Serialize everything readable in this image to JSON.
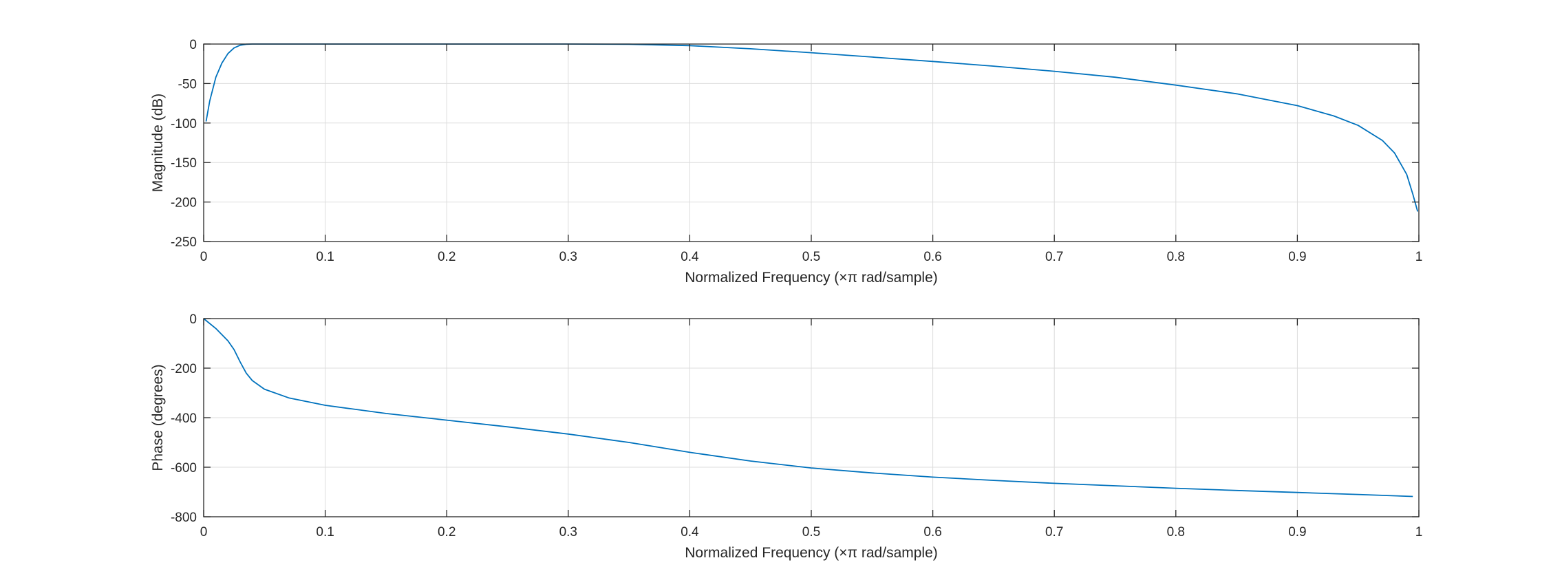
{
  "colors": {
    "series": "#0072bd",
    "axes": "#262626",
    "grid": "#dcdcdc"
  },
  "chart_data": [
    {
      "type": "line",
      "xlabel": "Normalized Frequency  (×π rad/sample)",
      "ylabel": "Magnitude (dB)",
      "xlim": [
        0,
        1
      ],
      "ylim": [
        -250,
        0
      ],
      "xticks": [
        0,
        0.1,
        0.2,
        0.3,
        0.4,
        0.5,
        0.6,
        0.7,
        0.8,
        0.9,
        1
      ],
      "xtick_labels": [
        "0",
        "0.1",
        "0.2",
        "0.3",
        "0.4",
        "0.5",
        "0.6",
        "0.7",
        "0.8",
        "0.9",
        "1"
      ],
      "yticks": [
        -250,
        -200,
        -150,
        -100,
        -50,
        0
      ],
      "ytick_labels": [
        "-250",
        "-200",
        "-150",
        "-100",
        "-50",
        "0"
      ],
      "grid": true,
      "series": [
        {
          "x": [
            0.002,
            0.005,
            0.01,
            0.015,
            0.02,
            0.025,
            0.03,
            0.035,
            0.04,
            0.05,
            0.1,
            0.2,
            0.3,
            0.35,
            0.4,
            0.45,
            0.5,
            0.55,
            0.6,
            0.65,
            0.7,
            0.75,
            0.8,
            0.85,
            0.9,
            0.93,
            0.95,
            0.97,
            0.98,
            0.99,
            0.995,
            0.999
          ],
          "y": [
            -98,
            -72,
            -42,
            -24,
            -12,
            -5,
            -1.5,
            -0.3,
            0,
            0,
            0,
            0,
            0,
            -0.3,
            -2,
            -6,
            -11,
            -16.5,
            -22,
            -28,
            -34.5,
            -42,
            -52,
            -63,
            -78,
            -91,
            -103,
            -122,
            -138,
            -165,
            -190,
            -212
          ]
        }
      ]
    },
    {
      "type": "line",
      "xlabel": "Normalized Frequency  (×π rad/sample)",
      "ylabel": "Phase (degrees)",
      "xlim": [
        0,
        1
      ],
      "ylim": [
        -800,
        0
      ],
      "xticks": [
        0,
        0.1,
        0.2,
        0.3,
        0.4,
        0.5,
        0.6,
        0.7,
        0.8,
        0.9,
        1
      ],
      "xtick_labels": [
        "0",
        "0.1",
        "0.2",
        "0.3",
        "0.4",
        "0.5",
        "0.6",
        "0.7",
        "0.8",
        "0.9",
        "1"
      ],
      "yticks": [
        -800,
        -600,
        -400,
        -200,
        0
      ],
      "ytick_labels": [
        "-800",
        "-600",
        "-400",
        "-200",
        "0"
      ],
      "grid": true,
      "series": [
        {
          "x": [
            0,
            0.01,
            0.02,
            0.025,
            0.03,
            0.035,
            0.04,
            0.05,
            0.07,
            0.1,
            0.15,
            0.2,
            0.25,
            0.3,
            0.35,
            0.4,
            0.45,
            0.5,
            0.55,
            0.6,
            0.65,
            0.7,
            0.75,
            0.8,
            0.85,
            0.9,
            0.95,
            0.995
          ],
          "y": [
            0,
            -40,
            -90,
            -125,
            -175,
            -220,
            -250,
            -285,
            -320,
            -350,
            -383,
            -410,
            -437,
            -466,
            -500,
            -540,
            -575,
            -603,
            -623,
            -640,
            -653,
            -665,
            -675,
            -685,
            -694,
            -702,
            -710,
            -718
          ]
        }
      ]
    }
  ]
}
